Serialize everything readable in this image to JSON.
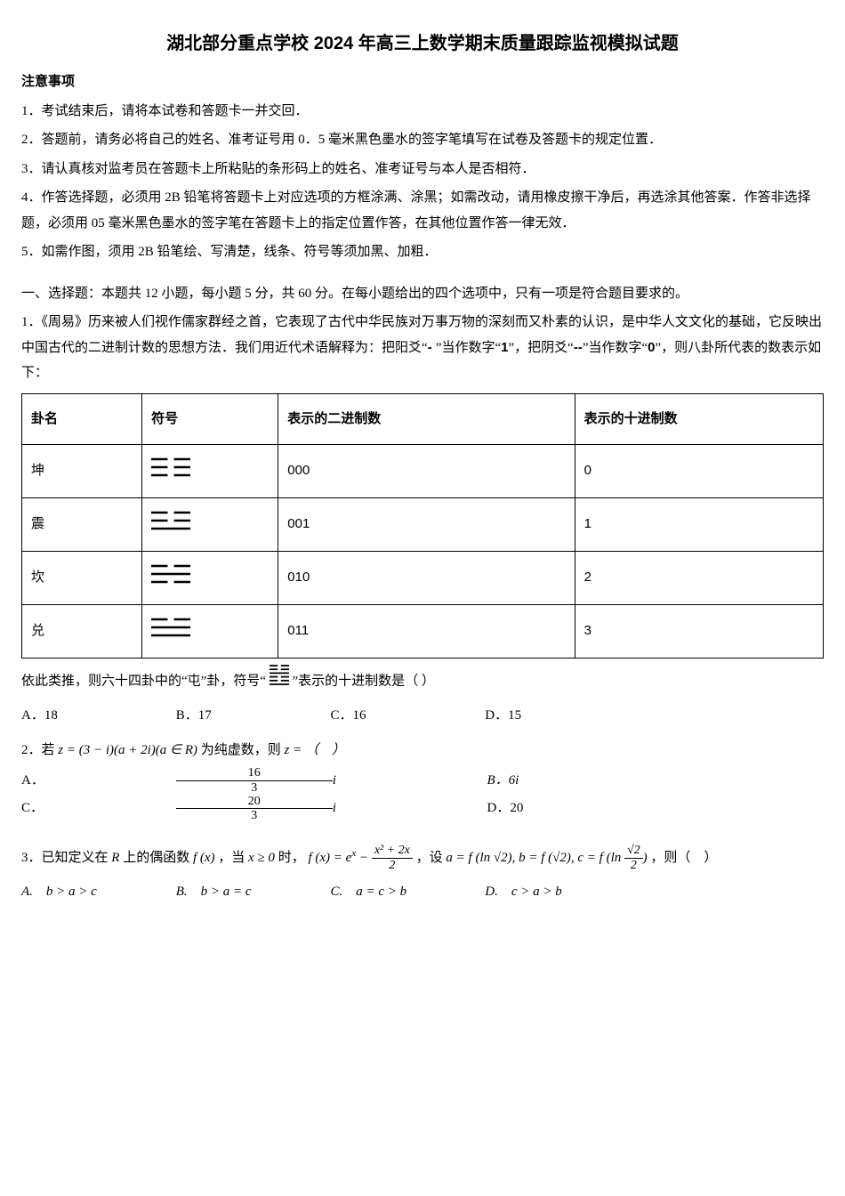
{
  "title": "湖北部分重点学校 2024 年高三上数学期末质量跟踪监视模拟试题",
  "notice_header": "注意事项",
  "notices": [
    "1．考试结束后，请将本试卷和答题卡一并交回．",
    "2．答题前，请务必将自己的姓名、准考证号用 0．5 毫米黑色墨水的签字笔填写在试卷及答题卡的规定位置．",
    "3．请认真核对监考员在答题卡上所粘贴的条形码上的姓名、准考证号与本人是否相符．",
    "4．作答选择题，必须用 2B 铅笔将答题卡上对应选项的方框涂满、涂黑；如需改动，请用橡皮擦干净后，再选涂其他答案．作答非选择题，必须用 05 毫米黑色墨水的签字笔在答题卡上的指定位置作答，在其他位置作答一律无效．",
    "5．如需作图，须用 2B 铅笔绘、写清楚，线条、符号等须加黑、加粗．"
  ],
  "section1_intro": "一、选择题：本题共 12 小题，每小题 5 分，共 60 分。在每小题给出的四个选项中，只有一项是符合题目要求的。",
  "q1_text_a": "1．《周易》历来被人们视作儒家群经之首，它表现了古代中华民族对万事万物的深刻而又朴素的认识，是中华人文文化的基础，它反映出中国古代的二进制计数的思想方法．我们用近代术语解释为：把阳爻“",
  "q1_yang": "- ",
  "q1_text_b": "”当作数字“",
  "q1_one": "1",
  "q1_text_c": "”，把阴爻“",
  "q1_yin": "--",
  "q1_text_d": "”当作数字“",
  "q1_zero": "0",
  "q1_text_e": "”，则八卦所代表的数表示如下：",
  "table": {
    "headers": [
      "卦名",
      "符号",
      "表示的二进制数",
      "表示的十进制数"
    ],
    "rows": [
      {
        "name": "坤",
        "type": "kun",
        "bin": "000",
        "dec": "0"
      },
      {
        "name": "震",
        "type": "zhen",
        "bin": "001",
        "dec": "1"
      },
      {
        "name": "坎",
        "type": "kan",
        "bin": "010",
        "dec": "2"
      },
      {
        "name": "兑",
        "type": "dui",
        "bin": "011",
        "dec": "3"
      }
    ],
    "symbol": {
      "width": 44,
      "height": 30,
      "line_color": "#000000",
      "line_width": 2.4,
      "gap": 6
    }
  },
  "q1_text_f_pre": "依此类推，则六十四卦中的“屯”卦，符号“",
  "q1_text_f_post": "”表示的十进制数是（  ）",
  "q1_zhun": {
    "lines": [
      "broken",
      "broken",
      "solid",
      "broken",
      "broken",
      "solid"
    ]
  },
  "q1_opts": {
    "A": "A．18",
    "B": "B．17",
    "C": "C．16",
    "D": "D．15"
  },
  "q2_pre": "2．若",
  "q2_expr": " z = (3 − i)(a + 2i)(a ∈ R) ",
  "q2_mid": "为纯虚数，则",
  "q2_post": "z = （　）",
  "q2_opts": {
    "A_pre": "A．",
    "A_num": "16",
    "A_den": "3",
    "A_suf": " i",
    "B": "B．6i",
    "C_pre": "C．",
    "C_num": "20",
    "C_den": "3",
    "C_suf": " i",
    "D": "D．20"
  },
  "q3_pre": "3．已知定义在 ",
  "q3_R": "R",
  "q3_a": " 上的偶函数 ",
  "q3_fx": "f (x)",
  "q3_b": " ，当 ",
  "q3_cond": "x ≥ 0",
  "q3_c": " 时，",
  "q3_fdef_lhs": "f (x) = e",
  "q3_fdef_exp": "x",
  "q3_fdef_minus": " − ",
  "q3_fdef_num": "x² + 2x",
  "q3_fdef_den": "2",
  "q3_set": "，设 ",
  "q3_abc_a": "a = f (ln ",
  "q3_sqrt2": "√2",
  "q3_abc_a2": "), b = f (",
  "q3_abc_a3": "), c = f (ln ",
  "q3_abc_frac_num": "√2",
  "q3_abc_frac_den": "2",
  "q3_abc_end": ")",
  "q3_tail": "，则（　）",
  "q3_opts": {
    "A": "A.　b > a > c",
    "B": "B.　b > a = c",
    "C": "C.　a = c > b",
    "D": "D.　c > a > b"
  }
}
